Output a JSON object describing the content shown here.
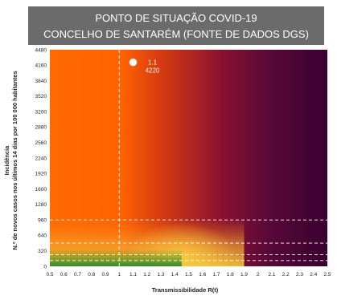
{
  "chart_data": {
    "type": "scatter",
    "title_lines": [
      "PONTO DE SITUAÇÃO COVID-19",
      "CONCELHO DE SANTARÉM (FONTE DE DADOS DGS)"
    ],
    "xlabel": "Transmissibilidade R(t)",
    "ylabel_lines": [
      "Incidência",
      "N.º de novos casos nos últimos 14 dias por 100 000 habitantes"
    ],
    "xlim": [
      0.5,
      2.5
    ],
    "ylim": [
      0,
      4480
    ],
    "x_ticks": [
      "0.5",
      "0.6",
      "0.7",
      "0.8",
      "0.9",
      "1",
      "1.1",
      "1.2",
      "1.3",
      "1.4",
      "1.5",
      "1.6",
      "1.7",
      "1.8",
      "1.9",
      "2",
      "2.1",
      "2.2",
      "2.3",
      "2.4",
      "2.5"
    ],
    "y_ticks": [
      "0",
      "320",
      "640",
      "960",
      "1280",
      "1600",
      "1920",
      "2240",
      "2560",
      "2880",
      "3200",
      "3520",
      "3840",
      "4160",
      "4480"
    ],
    "reference_lines": {
      "vertical_x": 1,
      "horizontal_y": [
        120,
        240,
        480,
        960
      ]
    },
    "point": {
      "x": 1.1,
      "y": 4220,
      "label_x": "1.1",
      "label_y": "4220",
      "color": "#ffffff"
    },
    "colors": {
      "title_bg": "#6b6b6b",
      "low_risk": "#2e8b2e",
      "medium_risk": "#f2c230",
      "high_risk": "#ff6a00",
      "very_high_risk": "#3d0033",
      "reference_line": "#ffffff"
    },
    "grid": false
  }
}
